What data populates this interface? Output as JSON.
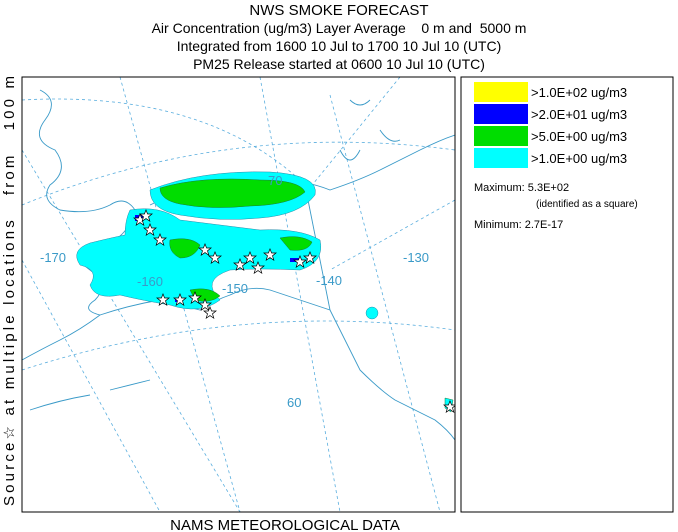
{
  "header": {
    "title": "NWS SMOKE FORECAST",
    "lines": [
      "Air Concentration (ug/m3) Layer Average    0 m and  5000 m",
      "Integrated from 1600 10 Jul to 1700 10 Jul 10 (UTC)",
      "PM25 Release started at 0600 10 Jul 10 (UTC)"
    ]
  },
  "side_label": "Source☆ at multiple locations   from   100 m",
  "footer": "NAMS METEOROLOGICAL DATA",
  "legend": {
    "entries": [
      {
        "label": ">1.0E+02 ug/m3",
        "color": "#ffff00"
      },
      {
        "label": ">2.0E+01 ug/m3",
        "color": "#0000ff"
      },
      {
        "label": ">5.0E+00 ug/m3",
        "color": "#00dd00"
      },
      {
        "label": ">1.0E+00 ug/m3",
        "color": "#00ffff"
      }
    ],
    "maximum": "Maximum: 5.3E+02",
    "maximum_note": "(identified as a square)",
    "minimum": "Minimum: 2.7E-17"
  },
  "map": {
    "labels": [
      "-170",
      "-160",
      "-150",
      "-140",
      "-130",
      "70",
      "60"
    ]
  }
}
